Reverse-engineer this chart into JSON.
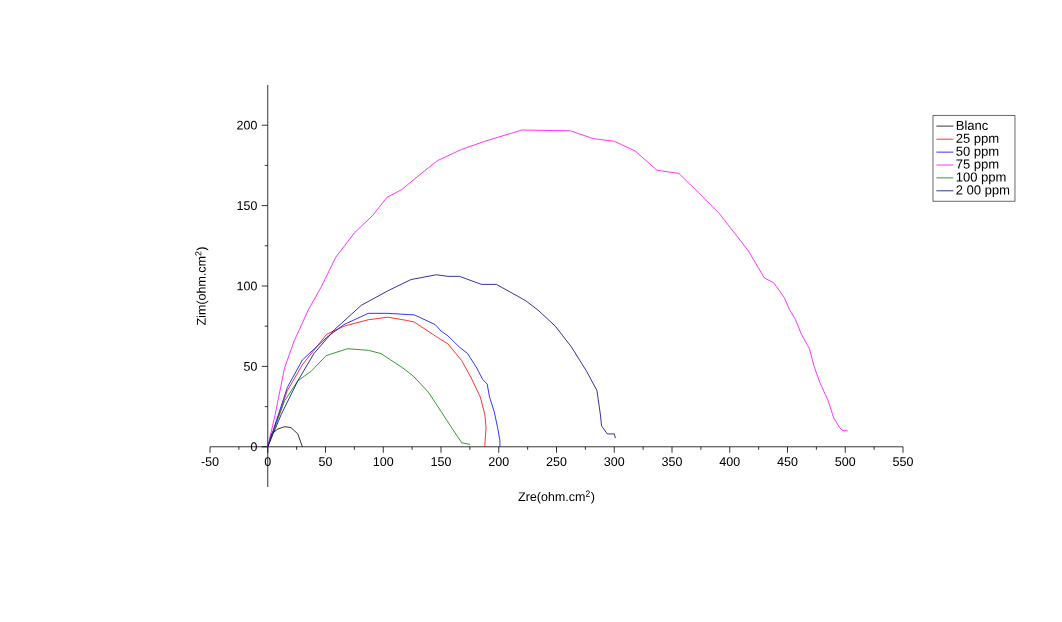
{
  "chart_data": {
    "type": "line",
    "xlabel": "Zre(ohm.cm$^{2}$)",
    "ylabel": "Zim(ohm.cm$^{2}$)",
    "xlim": [
      -50,
      550
    ],
    "ylim": [
      -25,
      225
    ],
    "xticks": [
      -50,
      0,
      50,
      100,
      150,
      200,
      250,
      300,
      350,
      400,
      450,
      500,
      550
    ],
    "yticks": [
      0,
      50,
      100,
      150,
      200
    ],
    "legend": "top right",
    "grid": false,
    "marker": "none",
    "line_style": "solid",
    "series": [
      {
        "name": "Blanc",
        "color": "#000000",
        "x": [
          0,
          3,
          8.7,
          14.5,
          20,
          26,
          30
        ],
        "values": [
          0,
          8,
          11,
          12.5,
          12,
          8,
          0
        ]
      },
      {
        "name": "25 ppm",
        "color": "#ff0000",
        "x": [
          0,
          17,
          30,
          51,
          66,
          87,
          104,
          121,
          127,
          147,
          156,
          168,
          176,
          184,
          188,
          189,
          188,
          188
        ],
        "values": [
          0,
          35,
          51,
          70,
          75,
          79,
          80.6,
          78.5,
          77.5,
          68,
          64,
          53.5,
          43,
          31,
          20,
          12,
          1.5,
          0
        ]
      },
      {
        "name": "50 ppm",
        "color": "#0000ff",
        "x": [
          0,
          17,
          30,
          51,
          66,
          87,
          104,
          127,
          145,
          150,
          156,
          166,
          173,
          181,
          186,
          190,
          192,
          196,
          199,
          201,
          201
        ],
        "values": [
          0,
          37,
          54,
          68,
          76,
          83,
          83,
          82,
          76,
          72,
          69,
          62,
          58,
          49,
          42,
          39,
          31,
          22,
          12,
          4,
          0
        ]
      },
      {
        "name": "75 ppm",
        "color": "#ff00ff",
        "x": [
          0,
          6.4,
          14.5,
          23,
          35,
          46,
          59,
          75,
          91,
          103,
          116,
          133,
          147,
          168,
          188,
          220,
          262,
          282,
          300,
          318,
          337,
          356,
          373,
          391,
          416,
          430,
          438,
          447,
          452,
          457,
          462,
          469,
          473,
          478,
          485,
          490,
          495,
          498,
          502
        ],
        "values": [
          0,
          20,
          49,
          66,
          85,
          99,
          118,
          133,
          144,
          155,
          160,
          170,
          178,
          185,
          190,
          197,
          196.5,
          191.6,
          190,
          184,
          172,
          170,
          158,
          145,
          122,
          105,
          102,
          93,
          85,
          79,
          70,
          61,
          50,
          40,
          29,
          18,
          12,
          10,
          10
        ]
      },
      {
        "name": "100 ppm",
        "color": "#008000",
        "x": [
          0,
          14.5,
          26,
          37.6,
          50.6,
          69,
          87,
          98,
          117,
          126,
          139,
          150,
          160,
          168,
          175
        ],
        "values": [
          0,
          28.5,
          41,
          47,
          56.7,
          61,
          60,
          58,
          49,
          44,
          34,
          22,
          11,
          2.5,
          1.5
        ]
      },
      {
        "name": "2 00 ppm",
        "color": "#000080",
        "x": [
          0,
          11.6,
          26,
          40,
          58,
          81,
          104,
          124,
          146,
          156,
          166,
          185,
          198,
          223,
          234,
          249,
          263,
          276,
          285,
          288,
          289,
          294,
          300,
          301
        ],
        "values": [
          0,
          20,
          41,
          58,
          73,
          88,
          97,
          104,
          107,
          106,
          106,
          101,
          101,
          91,
          85,
          75,
          62,
          47,
          35,
          20,
          13,
          8,
          8,
          5.4
        ]
      }
    ]
  }
}
